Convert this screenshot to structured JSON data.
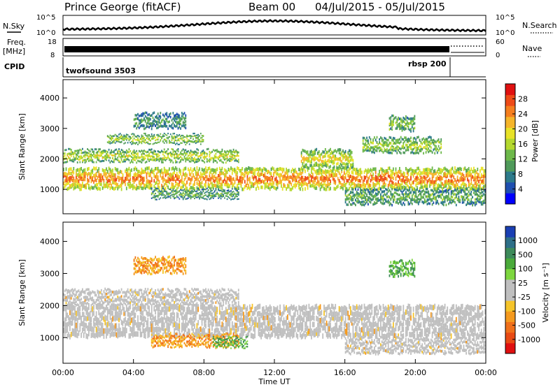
{
  "header": {
    "station": "Prince George (fitACF)",
    "beam": "Beam 00",
    "date_range": "04/Jul/2015 - 05/Jul/2015"
  },
  "top_panels": {
    "nsky_label": "N.Sky",
    "nsky_ticks": [
      "10^5",
      "10^0"
    ],
    "nsearch_label": "N.Search",
    "nsearch_ticks": [
      "10^5",
      "10^0"
    ],
    "freq_label_1": "Freq.",
    "freq_label_2": "[MHz]",
    "freq_ticks": [
      "18",
      "8"
    ],
    "nave_label": "Nave",
    "nave_ticks": [
      "60",
      "0"
    ],
    "cpid_label": "CPID",
    "cpid_modes": [
      {
        "name": "twofsound 3503",
        "start_hour": 0
      },
      {
        "name": "rbsp 200",
        "start_hour": 22
      }
    ]
  },
  "chart_data": [
    {
      "type": "heatmap",
      "name": "power",
      "ylabel": "Slant Range [km]",
      "yticks": [
        "1000",
        "2000",
        "3000",
        "4000"
      ],
      "ylim": [
        200,
        4600
      ],
      "xlim_hours": [
        0,
        24
      ],
      "colorbar_label": "Power [dB]",
      "colorbar_ticks": [
        "4",
        "8",
        "12",
        "16",
        "20",
        "24",
        "28"
      ],
      "colorbar_colors": [
        "#0000ff",
        "#1f4fb0",
        "#2d7a8a",
        "#4f9a5a",
        "#6db84a",
        "#b4d82e",
        "#e8e228",
        "#f5b52a",
        "#f57e1e",
        "#ee4a17",
        "#e01010"
      ],
      "bands": [
        {
          "from": 0,
          "to": 24,
          "range_km": [
            1000,
            1700
          ],
          "level_db": 26
        },
        {
          "from": 0,
          "to": 10,
          "range_km": [
            1900,
            2300
          ],
          "level_db": 18
        },
        {
          "from": 2.5,
          "to": 8,
          "range_km": [
            2500,
            2800
          ],
          "level_db": 16
        },
        {
          "from": 4,
          "to": 7,
          "range_km": [
            3000,
            3500
          ],
          "level_db": 10
        },
        {
          "from": 5,
          "to": 10,
          "range_km": [
            700,
            1000
          ],
          "level_db": 12
        },
        {
          "from": 13.5,
          "to": 16.5,
          "range_km": [
            1700,
            2300
          ],
          "level_db": 20
        },
        {
          "from": 17,
          "to": 21.5,
          "range_km": [
            2200,
            2700
          ],
          "level_db": 16
        },
        {
          "from": 18.5,
          "to": 20,
          "range_km": [
            2900,
            3400
          ],
          "level_db": 14
        },
        {
          "from": 16,
          "to": 24,
          "range_km": [
            500,
            1000
          ],
          "level_db": 12
        }
      ]
    },
    {
      "type": "heatmap",
      "name": "velocity",
      "ylabel": "Slant Range [km]",
      "yticks": [
        "1000",
        "2000",
        "3000",
        "4000"
      ],
      "ylim": [
        200,
        4600
      ],
      "xlim_hours": [
        0,
        24
      ],
      "colorbar_label": "Velocity [m s⁻¹]",
      "colorbar_ticks": [
        "1000",
        "500",
        "100",
        "25",
        "-25",
        "-100",
        "-500",
        "-1000"
      ],
      "colorbar_colors": [
        "#1a3fb3",
        "#2e6f88",
        "#3d8a5a",
        "#4aaa3a",
        "#7dd63e",
        "#bfbfbf",
        "#bfbfbf",
        "#f5c42a",
        "#f59a1e",
        "#f0701a",
        "#e84a14",
        "#e01010"
      ],
      "bands": [
        {
          "from": 0,
          "to": 24,
          "range_km": [
            1000,
            2000
          ],
          "kind": "ground"
        },
        {
          "from": 0,
          "to": 10,
          "range_km": [
            2000,
            2500
          ],
          "kind": "ground"
        },
        {
          "from": 5,
          "to": 10,
          "range_km": [
            700,
            1100
          ],
          "kind": "negative"
        },
        {
          "from": 4,
          "to": 7,
          "range_km": [
            3000,
            3500
          ],
          "kind": "negative"
        },
        {
          "from": 8.5,
          "to": 10.5,
          "range_km": [
            700,
            1000
          ],
          "kind": "positive"
        },
        {
          "from": 16,
          "to": 24,
          "range_km": [
            500,
            1000
          ],
          "kind": "ground"
        },
        {
          "from": 18.5,
          "to": 20,
          "range_km": [
            2900,
            3400
          ],
          "kind": "positive"
        }
      ]
    }
  ],
  "time_axis": {
    "label": "Time UT",
    "ticks": [
      "00:00",
      "04:00",
      "08:00",
      "12:00",
      "16:00",
      "20:00",
      "00:00"
    ]
  }
}
